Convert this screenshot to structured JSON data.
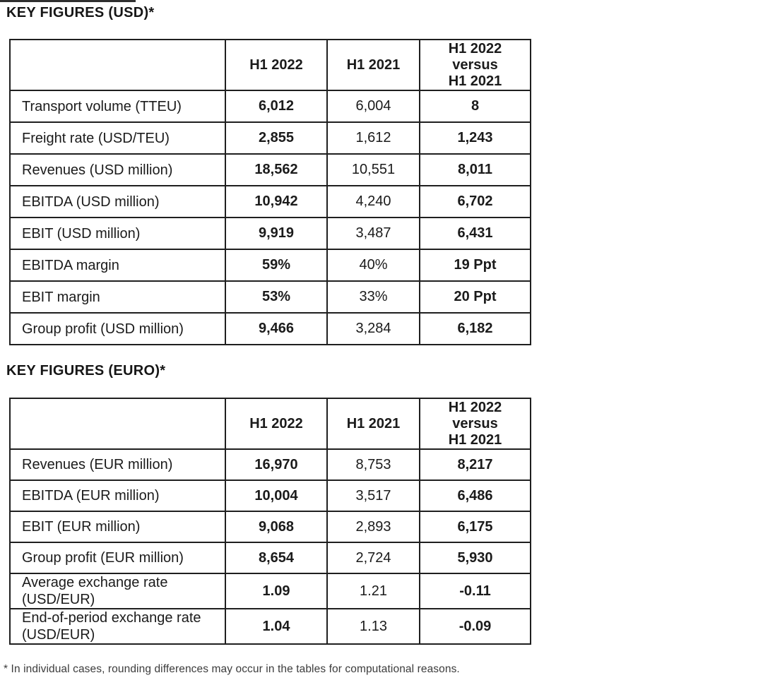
{
  "doc": {
    "usd_title": "KEY FIGURES (USD)*",
    "euro_title": "KEY FIGURES (EURO)*",
    "footnote": "* In individual cases, rounding differences may occur in the tables for computational reasons."
  },
  "headers": {
    "h1_2022": "H1 2022",
    "h1_2021": "H1 2021",
    "versus": "H1 2022\nversus\nH1 2021"
  },
  "usd_table": {
    "rows": [
      {
        "label": "Transport volume (TTEU)",
        "h1_2022": "6,012",
        "h1_2021": "6,004",
        "delta": "8"
      },
      {
        "label": "Freight rate (USD/TEU)",
        "h1_2022": "2,855",
        "h1_2021": "1,612",
        "delta": "1,243"
      },
      {
        "label": "Revenues (USD million)",
        "h1_2022": "18,562",
        "h1_2021": "10,551",
        "delta": "8,011"
      },
      {
        "label": "EBITDA (USD million)",
        "h1_2022": "10,942",
        "h1_2021": "4,240",
        "delta": "6,702"
      },
      {
        "label": "EBIT (USD million)",
        "h1_2022": "9,919",
        "h1_2021": "3,487",
        "delta": "6,431"
      },
      {
        "label": "EBITDA margin",
        "h1_2022": "59%",
        "h1_2021": "40%",
        "delta": "19 Ppt"
      },
      {
        "label": "EBIT margin",
        "h1_2022": "53%",
        "h1_2021": "33%",
        "delta": "20 Ppt"
      },
      {
        "label": "Group profit (USD million)",
        "h1_2022": "9,466",
        "h1_2021": "3,284",
        "delta": "6,182"
      }
    ]
  },
  "euro_table": {
    "rows": [
      {
        "label": "Revenues (EUR million)",
        "h1_2022": "16,970",
        "h1_2021": "8,753",
        "delta": "8,217"
      },
      {
        "label": "EBITDA (EUR million)",
        "h1_2022": "10,004",
        "h1_2021": "3,517",
        "delta": "6,486"
      },
      {
        "label": "EBIT (EUR million)",
        "h1_2022": "9,068",
        "h1_2021": "2,893",
        "delta": "6,175"
      },
      {
        "label": "Group profit (EUR million)",
        "h1_2022": "8,654",
        "h1_2021": "2,724",
        "delta": "5,930"
      },
      {
        "label": "Average exchange rate\n(USD/EUR)",
        "h1_2022": "1.09",
        "h1_2021": "1.21",
        "delta": "-0.11"
      },
      {
        "label": "End-of-period exchange rate\n(USD/EUR)",
        "h1_2022": "1.04",
        "h1_2021": "1.13",
        "delta": "-0.09"
      }
    ]
  }
}
